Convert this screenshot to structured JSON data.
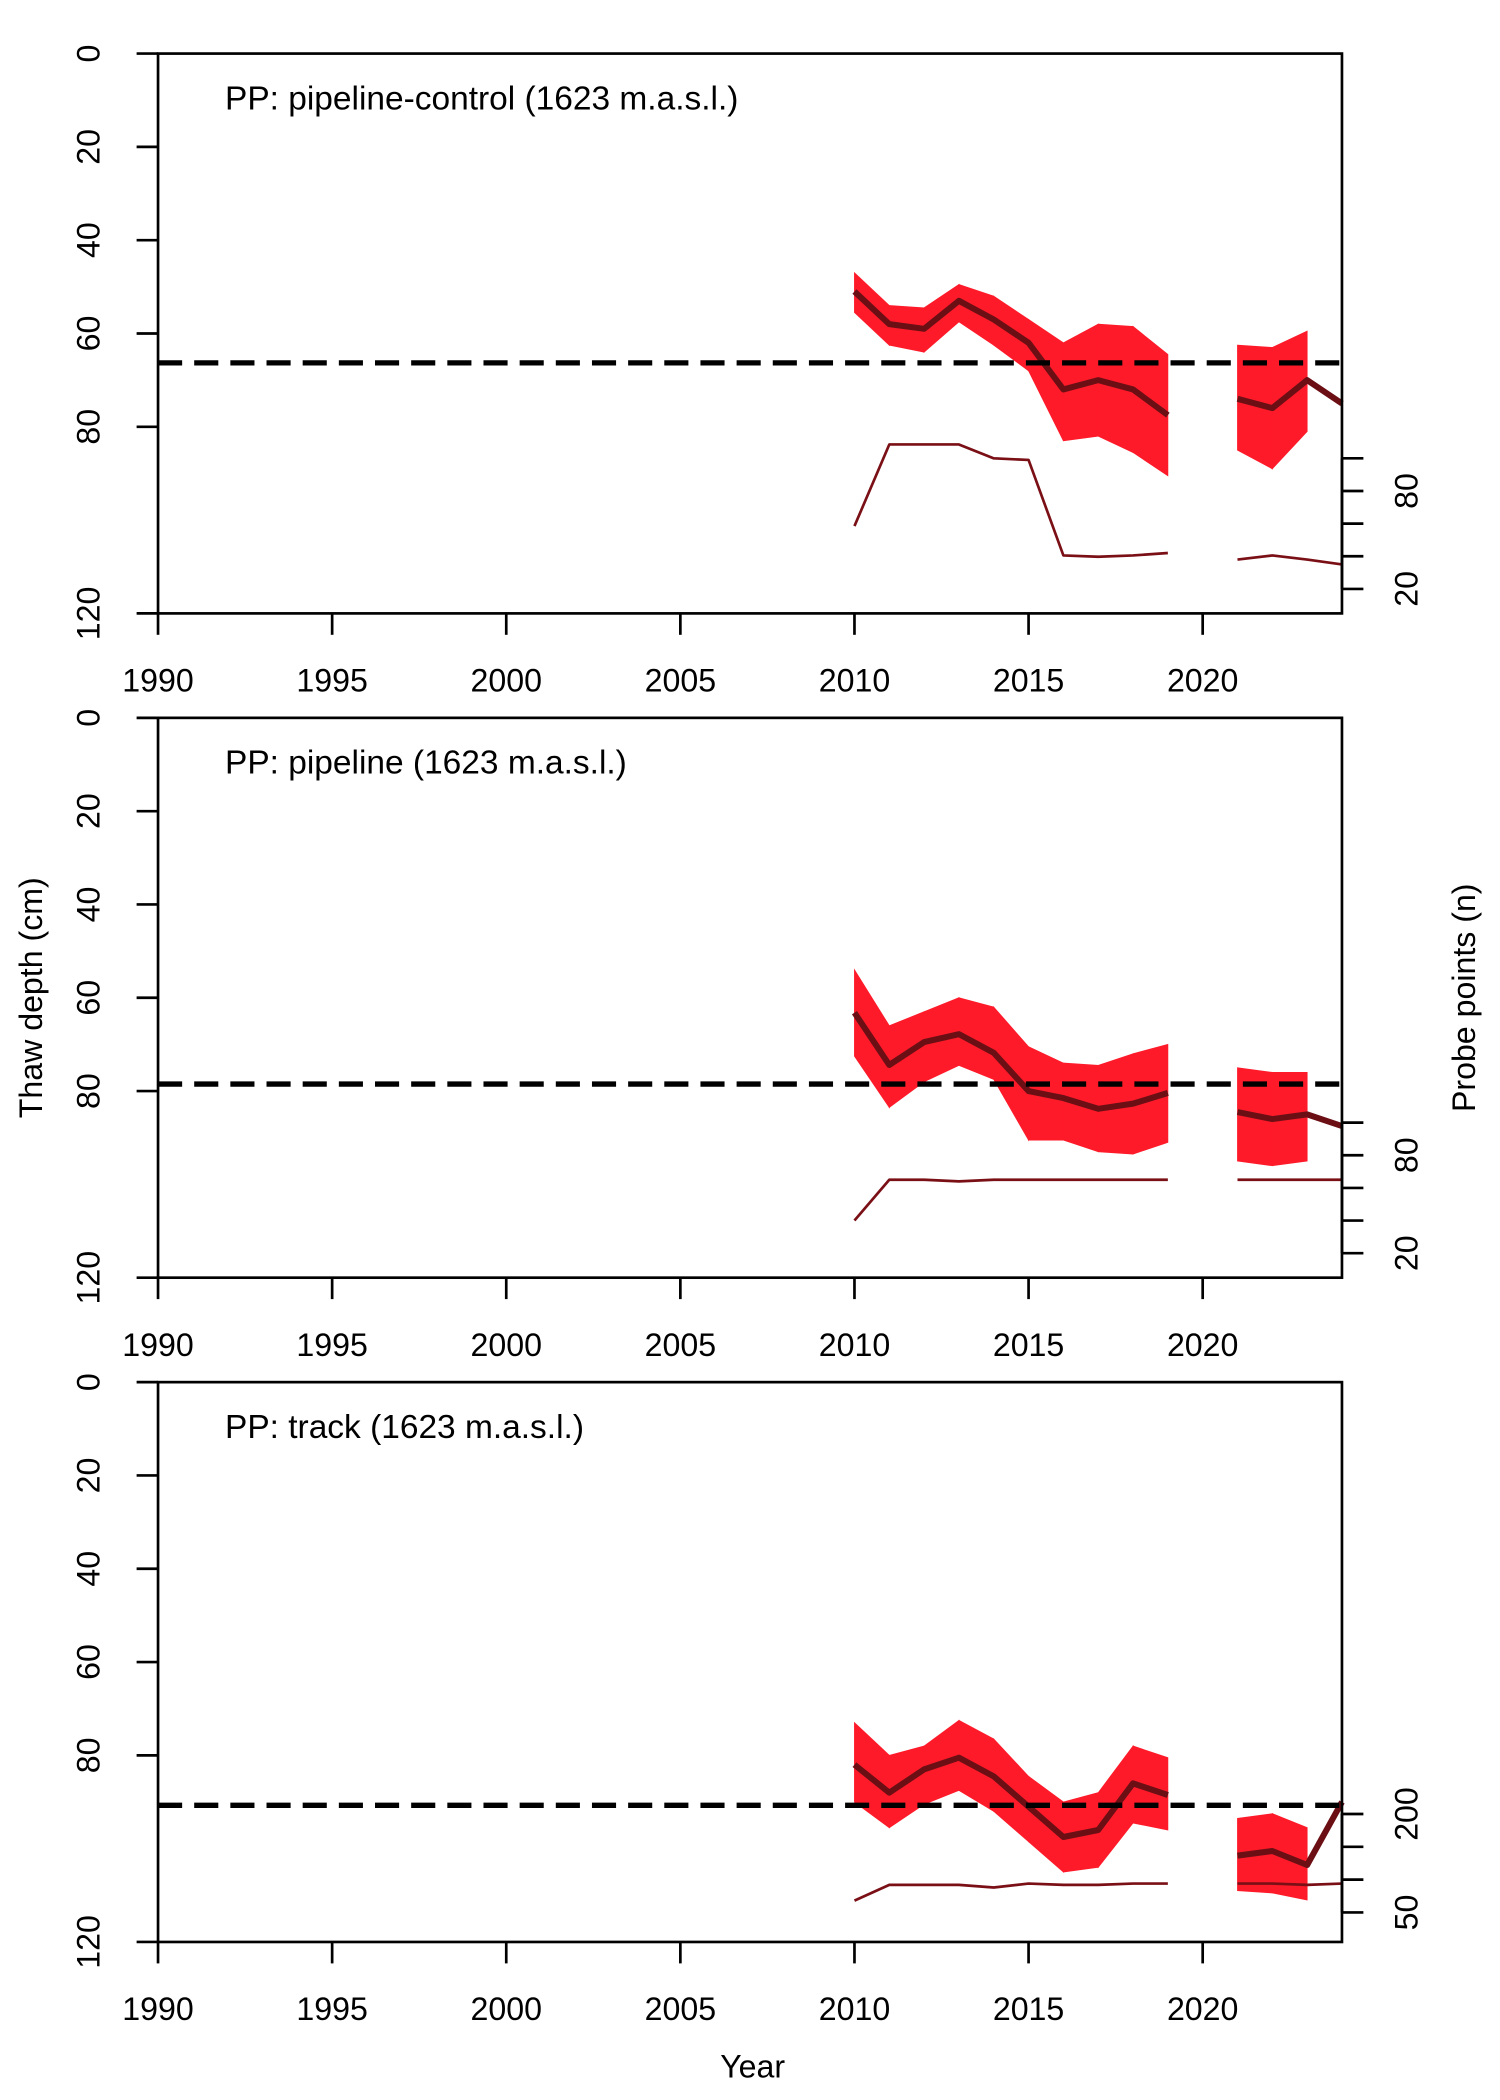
{
  "chart_data": [
    {
      "type": "line",
      "title": "PP: pipeline-control (1623 m.a.s.l.)",
      "x": [
        2010,
        2011,
        2012,
        2013,
        2014,
        2015,
        2016,
        2017,
        2018,
        2019,
        2020,
        2021,
        2022,
        2023,
        2024
      ],
      "values": [
        51,
        58,
        59,
        53,
        57,
        62,
        72,
        70,
        72,
        77.5,
        null,
        74,
        76,
        70,
        75
      ],
      "band_low": [
        47,
        54,
        54.5,
        49.5,
        52,
        57,
        62,
        58,
        58.5,
        64.5,
        null,
        62.5,
        63,
        59.5,
        null
      ],
      "band_high": [
        55.5,
        62.5,
        64,
        57.5,
        62.5,
        68,
        83,
        82,
        85.5,
        90.5,
        null,
        85,
        89,
        81,
        null
      ],
      "probe_points": [
        58.5,
        108.5,
        108.5,
        108.5,
        100,
        99,
        40.5,
        39.7,
        40.5,
        42,
        null,
        38,
        40.5,
        38,
        35
      ],
      "reference": 66.3,
      "color": "#6b0f14",
      "band_color": "#ff1a2a",
      "probe_color": "#7a1016",
      "reference_color": "#000000",
      "xlim": [
        1990,
        2024
      ],
      "xticks": [
        1990,
        1995,
        2000,
        2005,
        2010,
        2015,
        2020
      ],
      "ylim": [
        120,
        0
      ],
      "yticks": [
        0,
        20,
        40,
        60,
        80,
        120
      ],
      "y2lim": [
        5,
        348
      ],
      "y2ticks": [
        20,
        80
      ],
      "y2minor": [
        40,
        60,
        100
      ]
    },
    {
      "type": "line",
      "title": "PP: pipeline (1623 m.a.s.l.)",
      "ylabel": "Thaw depth (cm)",
      "y2label": "Probe points (n)",
      "x": [
        2010,
        2011,
        2012,
        2013,
        2014,
        2015,
        2016,
        2017,
        2018,
        2019,
        2020,
        2021,
        2022,
        2023,
        2024
      ],
      "values": [
        63.2,
        74.4,
        69.5,
        67.8,
        71.8,
        80,
        81.5,
        83.8,
        82.7,
        80.4,
        null,
        84.5,
        86,
        85,
        87.5
      ],
      "band_low": [
        54,
        66,
        63,
        60,
        62,
        70.5,
        74,
        74.5,
        72,
        70,
        null,
        75,
        76,
        76,
        null
      ],
      "band_high": [
        72.5,
        83.5,
        78,
        74.5,
        77.5,
        90.5,
        90.5,
        93,
        93.5,
        91,
        null,
        95,
        96,
        95,
        null
      ],
      "probe_points": [
        40,
        65,
        65,
        64,
        65,
        65,
        65,
        65,
        65,
        65,
        null,
        65,
        65,
        65,
        65
      ],
      "reference": 78.5,
      "color": "#6b0f14",
      "band_color": "#ff1a2a",
      "probe_color": "#7a1016",
      "reference_color": "#000000",
      "xlim": [
        1990,
        2024
      ],
      "xticks": [
        1990,
        1995,
        2000,
        2005,
        2010,
        2015,
        2020
      ],
      "ylim": [
        120,
        0
      ],
      "yticks": [
        0,
        20,
        40,
        60,
        80,
        120
      ],
      "y2lim": [
        5,
        348
      ],
      "y2ticks": [
        20,
        80
      ],
      "y2minor": [
        40,
        60,
        100
      ]
    },
    {
      "type": "line",
      "title": "PP: track (1623 m.a.s.l.)",
      "xlabel": "Year",
      "x": [
        2010,
        2011,
        2012,
        2013,
        2014,
        2015,
        2016,
        2017,
        2018,
        2019,
        2020,
        2021,
        2022,
        2023,
        2024
      ],
      "values": [
        82,
        88,
        83,
        80.5,
        84.5,
        91,
        97.5,
        96,
        86,
        88.5,
        null,
        101.5,
        100.5,
        103.5,
        90
      ],
      "band_low": [
        73,
        80,
        78,
        72.5,
        76.5,
        84.5,
        90,
        88,
        78,
        80.5,
        null,
        93.5,
        92.5,
        95.5,
        null
      ],
      "band_high": [
        90,
        95.5,
        90.5,
        87.5,
        92,
        98.5,
        105,
        104,
        94.5,
        96,
        null,
        109,
        109.5,
        111,
        null
      ],
      "probe_points": [
        68,
        92,
        92,
        92,
        88,
        94,
        92,
        92,
        94,
        94,
        null,
        94,
        94,
        92,
        94
      ],
      "reference": 90.7,
      "color": "#6b0f14",
      "band_color": "#ff1a2a",
      "probe_color": "#7a1016",
      "reference_color": "#000000",
      "xlim": [
        1990,
        2024
      ],
      "xticks": [
        1990,
        1995,
        2000,
        2005,
        2010,
        2015,
        2020
      ],
      "ylim": [
        120,
        0
      ],
      "yticks": [
        0,
        20,
        40,
        60,
        80,
        120
      ],
      "y2lim": [
        5,
        858
      ],
      "y2ticks": [
        50,
        200
      ],
      "y2minor": [
        100,
        150
      ]
    }
  ]
}
